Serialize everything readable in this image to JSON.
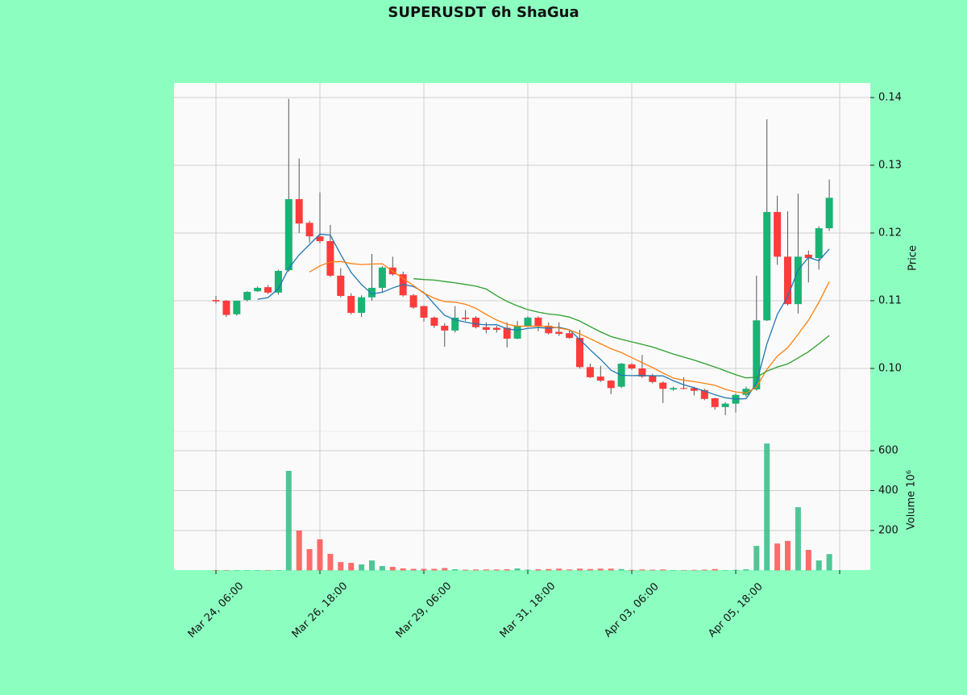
{
  "chart_data": {
    "type": "candlestick",
    "title": "SUPERUSDT 6h ShaGua",
    "categories": [
      "Mar 24, 06:00",
      null,
      null,
      null,
      null,
      null,
      null,
      null,
      null,
      null,
      "Mar 26, 18:00",
      null,
      null,
      null,
      null,
      null,
      null,
      null,
      null,
      null,
      "Mar 29, 06:00",
      null,
      null,
      null,
      null,
      null,
      null,
      null,
      null,
      null,
      "Mar 31, 18:00",
      null,
      null,
      null,
      null,
      null,
      null,
      null,
      null,
      null,
      "Apr 03, 06:00",
      null,
      null,
      null,
      null,
      null,
      null,
      null,
      null,
      null,
      "Apr 05, 18:00",
      null,
      null,
      null,
      null,
      null,
      null,
      null,
      null,
      null
    ],
    "open": [
      0.1101,
      0.11,
      0.108,
      0.1101,
      0.1114,
      0.112,
      0.1112,
      0.1145,
      0.125,
      0.1215,
      0.1195,
      0.1188,
      0.1137,
      0.1107,
      0.1082,
      0.1105,
      0.1119,
      0.1149,
      0.1139,
      0.1108,
      0.1092,
      0.1075,
      0.1063,
      0.1056,
      0.1075,
      0.1075,
      0.1061,
      0.106,
      0.106,
      0.1044,
      0.1063,
      0.1075,
      0.1063,
      0.1054,
      0.1052,
      0.1045,
      0.1002,
      0.0988,
      0.0982,
      0.0973,
      0.1006,
      0.1,
      0.0989,
      0.0979,
      0.0969,
      0.0971,
      0.0971,
      0.0968,
      0.0956,
      0.0943,
      0.0948,
      0.0961,
      0.0969,
      0.1071,
      0.1231,
      0.1165,
      0.1095,
      0.1168,
      0.1163,
      0.1207
    ],
    "high": [
      0.1107,
      0.1101,
      0.11,
      0.1114,
      0.1121,
      0.1123,
      0.1146,
      0.1398,
      0.131,
      0.1218,
      0.126,
      0.1212,
      0.1148,
      0.1111,
      0.1108,
      0.1169,
      0.1151,
      0.1165,
      0.1143,
      0.111,
      0.1093,
      0.1077,
      0.1067,
      0.1092,
      0.1086,
      0.1077,
      0.1068,
      0.1063,
      0.1068,
      0.107,
      0.1077,
      0.1077,
      0.1068,
      0.1068,
      0.1058,
      0.1057,
      0.1007,
      0.1004,
      0.0983,
      0.1008,
      0.1008,
      0.102,
      0.0992,
      0.0981,
      0.0973,
      0.0987,
      0.0973,
      0.097,
      0.0957,
      0.095,
      0.0963,
      0.0973,
      0.1137,
      0.1368,
      0.1255,
      0.1232,
      0.1258,
      0.1174,
      0.121,
      0.1279
    ],
    "low": [
      0.1096,
      0.1076,
      0.1078,
      0.1099,
      0.1113,
      0.111,
      0.1109,
      0.1143,
      0.12,
      0.1186,
      0.1185,
      0.1135,
      0.1105,
      0.108,
      0.1076,
      0.11,
      0.1113,
      0.1137,
      0.1106,
      0.1088,
      0.1069,
      0.106,
      0.1032,
      0.1053,
      0.107,
      0.1059,
      0.1052,
      0.1053,
      0.1031,
      0.1043,
      0.1061,
      0.1055,
      0.105,
      0.1048,
      0.1044,
      0.1,
      0.0986,
      0.098,
      0.0962,
      0.0971,
      0.0998,
      0.0986,
      0.0978,
      0.0949,
      0.0967,
      0.0969,
      0.096,
      0.0953,
      0.0939,
      0.0931,
      0.0935,
      0.0958,
      0.0967,
      0.107,
      0.1153,
      0.1093,
      0.1081,
      0.1127,
      0.1146,
      0.1203
    ],
    "close": [
      0.1099,
      0.1079,
      0.11,
      0.1113,
      0.1119,
      0.1112,
      0.1144,
      0.125,
      0.1214,
      0.1195,
      0.1188,
      0.1137,
      0.1107,
      0.1082,
      0.1105,
      0.1119,
      0.1149,
      0.1139,
      0.1108,
      0.109,
      0.1075,
      0.1063,
      0.1056,
      0.1075,
      0.1073,
      0.1061,
      0.1057,
      0.1057,
      0.1044,
      0.1063,
      0.1075,
      0.1063,
      0.1052,
      0.1051,
      0.1045,
      0.1002,
      0.0987,
      0.0982,
      0.0971,
      0.1007,
      0.1,
      0.0988,
      0.098,
      0.097,
      0.0971,
      0.097,
      0.0967,
      0.0955,
      0.0943,
      0.0948,
      0.0961,
      0.097,
      0.1071,
      0.1231,
      0.1165,
      0.1095,
      0.1165,
      0.1163,
      0.1207,
      0.1252
    ],
    "volume": [
      2,
      2,
      1,
      1,
      1,
      1,
      1,
      499,
      200,
      107,
      156,
      83,
      42,
      38,
      30,
      50,
      22,
      18,
      10,
      8,
      8,
      8,
      12,
      6,
      4,
      5,
      5,
      5,
      6,
      10,
      4,
      6,
      7,
      9,
      5,
      9,
      7,
      9,
      9,
      7,
      3,
      5,
      4,
      5,
      2,
      2,
      3,
      4,
      7,
      2,
      3,
      6,
      123,
      636,
      135,
      148,
      317,
      103,
      50,
      82
    ],
    "up_color": "#19b374",
    "down_color": "#ff3b3b",
    "moving_averages": [
      {
        "color": "#1f77b4",
        "values": [
          null,
          null,
          null,
          null,
          0.1102,
          0.11046,
          0.11176,
          0.11476,
          0.11678,
          0.1183,
          0.11982,
          0.11968,
          0.11682,
          0.11418,
          0.11238,
          0.111,
          0.11124,
          0.11188,
          0.1124,
          0.1121,
          0.11122,
          0.1095,
          0.10784,
          0.10718,
          0.10684,
          0.10656,
          0.10644,
          0.10646,
          0.10584,
          0.10564,
          0.10592,
          0.10604,
          0.10594,
          0.10608,
          0.10572,
          0.10426,
          0.10274,
          0.10134,
          0.09974,
          0.09898,
          0.09894,
          0.09896,
          0.09892,
          0.0989,
          0.09818,
          0.09758,
          0.09716,
          0.09666,
          0.09612,
          0.09566,
          0.09548,
          0.09554,
          0.09786,
          0.10362,
          0.10796,
          0.11064,
          0.11454,
          0.11638,
          0.1159,
          0.11764
        ]
      },
      {
        "color": "#ff7f0e",
        "values": [
          null,
          null,
          null,
          null,
          null,
          null,
          null,
          null,
          null,
          0.11425,
          0.11514,
          0.11572,
          0.11579,
          0.11548,
          0.11534,
          0.11541,
          0.11546,
          0.11435,
          0.11329,
          0.11224,
          0.11111,
          0.11037,
          0.10986,
          0.10979,
          0.10947,
          0.10889,
          0.10797,
          0.10715,
          0.10651,
          0.10624,
          0.10624,
          0.10624,
          0.1062,
          0.10596,
          0.10568,
          0.10509,
          0.10439,
          0.10364,
          0.10291,
          0.10235,
          0.1016,
          0.10085,
          0.10013,
          0.09932,
          0.09858,
          0.09826,
          0.09806,
          0.09779,
          0.09751,
          0.09692,
          0.09653,
          0.09635,
          0.09726,
          0.09987,
          0.10181,
          0.10306,
          0.10504,
          0.10712,
          0.10976,
          0.1128
        ]
      },
      {
        "color": "#2ca02c",
        "values": [
          null,
          null,
          null,
          null,
          null,
          null,
          null,
          null,
          null,
          null,
          null,
          null,
          null,
          null,
          null,
          null,
          null,
          null,
          null,
          0.11325,
          0.11313,
          0.11305,
          0.11283,
          0.11264,
          0.1124,
          0.11215,
          0.11172,
          0.11075,
          0.1099,
          0.10924,
          0.10868,
          0.10831,
          0.10803,
          0.10788,
          0.10758,
          0.10699,
          0.10618,
          0.1054,
          0.10471,
          0.1043,
          0.10392,
          0.10355,
          0.10317,
          0.10264,
          0.10213,
          0.10168,
          0.10123,
          0.10072,
          0.10021,
          0.09964,
          0.09907,
          0.0986,
          0.0987,
          0.0996,
          0.1002,
          0.10066,
          0.10155,
          0.10246,
          0.10364,
          0.10486
        ]
      }
    ],
    "ylabel": "Price",
    "ylim": [
      0.09071,
      0.14214
    ],
    "yticks": [
      {
        "value": 0.1,
        "label": "0.10"
      },
      0.11,
      0.12,
      0.13,
      0.14
    ],
    "volume_ylabel": "Volume  10⁶",
    "volume_ylim": [
      0,
      697
    ],
    "volume_yticks": [
      200,
      400,
      600
    ],
    "grid": true
  }
}
